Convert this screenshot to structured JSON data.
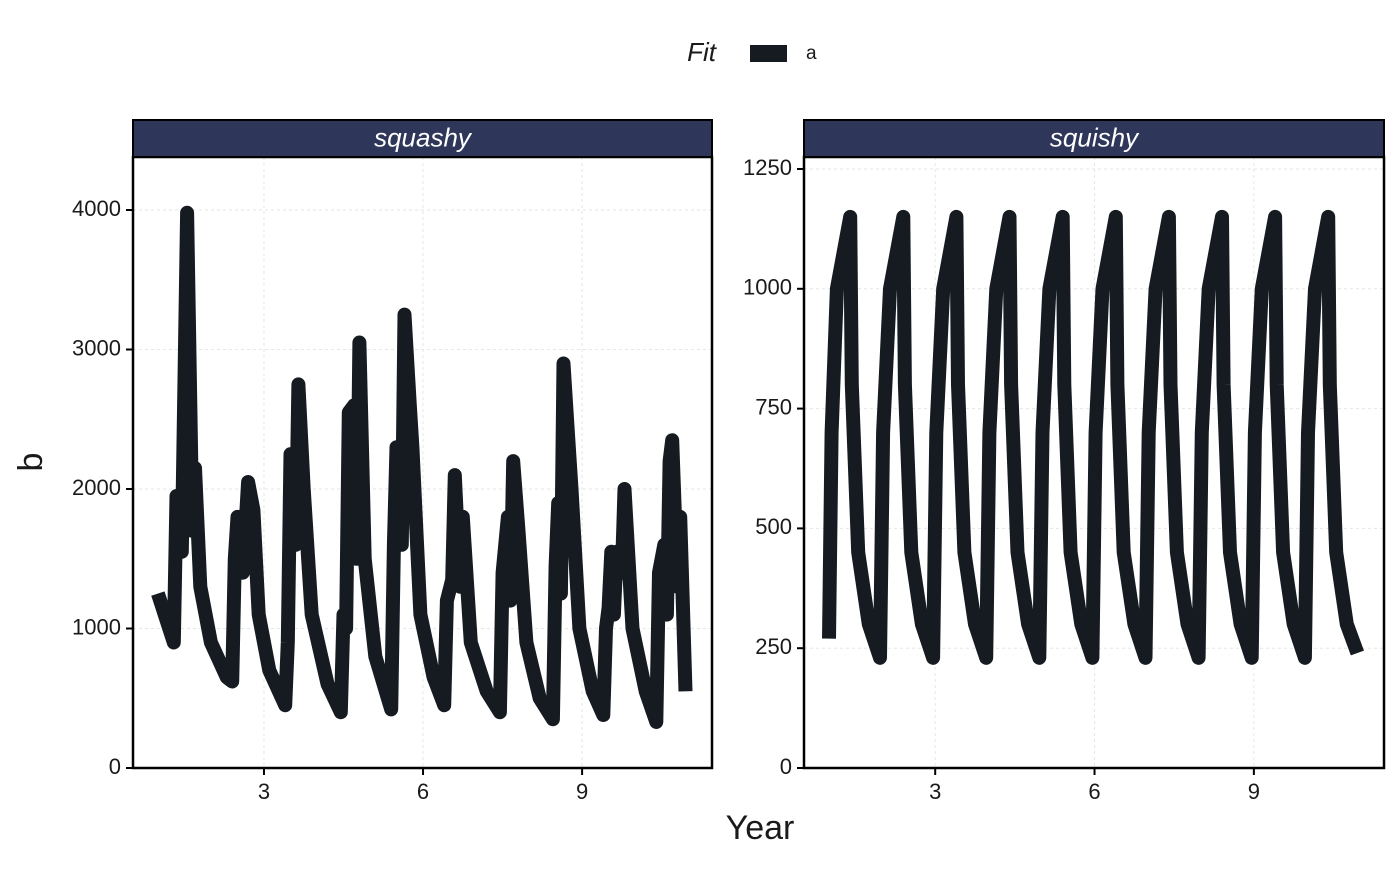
{
  "chart_data": {
    "type": "line",
    "x_label": "Year",
    "y_label": "b",
    "legend_title": "Fit",
    "series": [
      {
        "name": "a",
        "color": "#161b21"
      }
    ],
    "grid": true,
    "panels": [
      {
        "title": "squashy",
        "xlim": [
          0.53,
          11.45
        ],
        "xticks": [
          3,
          6,
          9
        ],
        "ylim": [
          0,
          4380
        ],
        "yticks": [
          0,
          1000,
          2000,
          3000,
          4000
        ],
        "x": [
          1.0,
          1.3,
          1.35,
          1.45,
          1.55,
          1.65,
          1.7,
          1.8,
          2.0,
          2.3,
          2.4,
          2.45,
          2.5,
          2.6,
          2.7,
          2.8,
          2.9,
          3.1,
          3.4,
          3.45,
          3.5,
          3.6,
          3.65,
          3.75,
          3.9,
          4.2,
          4.45,
          4.5,
          4.55,
          4.6,
          4.7,
          4.75,
          4.8,
          4.9,
          5.1,
          5.4,
          5.45,
          5.5,
          5.6,
          5.65,
          5.75,
          5.8,
          5.95,
          6.2,
          6.4,
          6.45,
          6.55,
          6.6,
          6.7,
          6.75,
          6.9,
          7.2,
          7.45,
          7.5,
          7.6,
          7.65,
          7.7,
          7.8,
          7.95,
          8.2,
          8.45,
          8.5,
          8.55,
          8.6,
          8.65,
          8.75,
          8.8,
          8.95,
          9.2,
          9.4,
          9.45,
          9.5,
          9.55,
          9.6,
          9.65,
          9.75,
          9.8,
          9.95,
          10.2,
          10.4,
          10.45,
          10.55,
          10.6,
          10.65,
          10.7,
          10.8,
          10.85,
          10.95
        ],
        "values": [
          1250,
          900,
          1950,
          1550,
          3980,
          1700,
          2150,
          1300,
          900,
          650,
          620,
          1500,
          1800,
          1400,
          2050,
          1850,
          1100,
          700,
          450,
          900,
          2250,
          1600,
          2750,
          2000,
          1100,
          600,
          400,
          1100,
          1000,
          2550,
          2600,
          1500,
          3050,
          1500,
          800,
          420,
          1600,
          2300,
          1600,
          3250,
          2600,
          2300,
          1100,
          650,
          450,
          1200,
          1350,
          2100,
          1300,
          1800,
          900,
          550,
          400,
          1400,
          1800,
          1200,
          2200,
          1700,
          900,
          500,
          350,
          1450,
          1900,
          1250,
          2900,
          2300,
          2000,
          1000,
          550,
          380,
          1000,
          1150,
          1550,
          1100,
          1550,
          1400,
          2000,
          1000,
          550,
          330,
          1400,
          1600,
          1100,
          2200,
          2350,
          1300,
          1800,
          550
        ]
      },
      {
        "title": "squishy",
        "xlim": [
          0.53,
          11.45
        ],
        "xticks": [
          3,
          6,
          9
        ],
        "ylim": [
          0,
          1275
        ],
        "yticks": [
          0,
          250,
          500,
          750,
          1000,
          1250
        ],
        "x": [
          1.0,
          1.05,
          1.15,
          1.4,
          1.43,
          1.55,
          1.75,
          1.96,
          2.02,
          2.15,
          2.4,
          2.43,
          2.55,
          2.75,
          2.96,
          3.02,
          3.15,
          3.4,
          3.43,
          3.55,
          3.75,
          3.96,
          4.02,
          4.15,
          4.4,
          4.43,
          4.55,
          4.75,
          4.96,
          5.02,
          5.15,
          5.4,
          5.43,
          5.55,
          5.75,
          5.96,
          6.02,
          6.15,
          6.4,
          6.43,
          6.55,
          6.75,
          6.96,
          7.02,
          7.15,
          7.4,
          7.43,
          7.55,
          7.75,
          7.96,
          8.02,
          8.15,
          8.4,
          8.43,
          8.55,
          8.75,
          8.96,
          9.02,
          9.15,
          9.4,
          9.43,
          9.55,
          9.75,
          9.96,
          10.02,
          10.15,
          10.4,
          10.43,
          10.55,
          10.75,
          10.95
        ],
        "values": [
          270,
          700,
          1000,
          1150,
          800,
          450,
          300,
          230,
          700,
          1000,
          1150,
          800,
          450,
          300,
          230,
          700,
          1000,
          1150,
          800,
          450,
          300,
          230,
          700,
          1000,
          1150,
          800,
          450,
          300,
          230,
          700,
          1000,
          1150,
          800,
          450,
          300,
          230,
          700,
          1000,
          1150,
          800,
          450,
          300,
          230,
          700,
          1000,
          1150,
          800,
          450,
          300,
          230,
          700,
          1000,
          1150,
          800,
          450,
          300,
          230,
          700,
          1000,
          1150,
          800,
          450,
          300,
          230,
          700,
          1000,
          1150,
          800,
          450,
          300,
          240
        ]
      }
    ]
  }
}
